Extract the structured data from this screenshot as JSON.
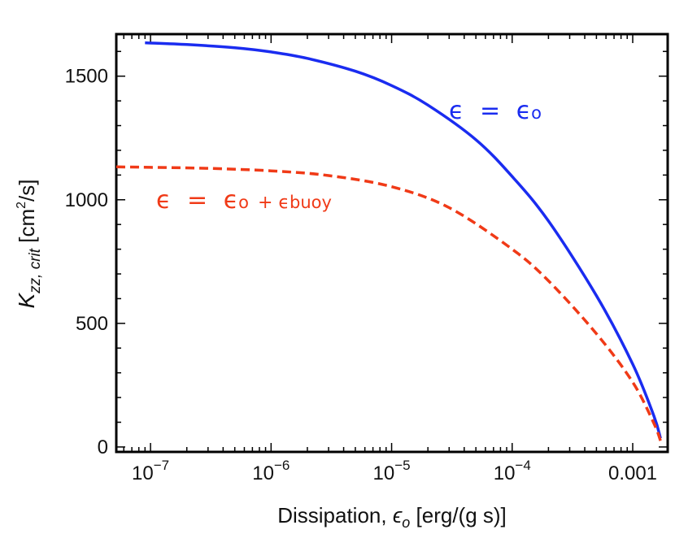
{
  "chart_data": {
    "type": "line",
    "xscale": "log",
    "xlim": [
      5.2e-08,
      0.00195
    ],
    "ylim": [
      -20,
      1670
    ],
    "x_ticks": [
      {
        "value": 1e-07,
        "base": "10",
        "exp": "−7"
      },
      {
        "value": 1e-06,
        "base": "10",
        "exp": "−6"
      },
      {
        "value": 1e-05,
        "base": "10",
        "exp": "−5"
      },
      {
        "value": 0.0001,
        "base": "10",
        "exp": "−4"
      },
      {
        "value": 0.001,
        "base": "0.001",
        "exp": ""
      }
    ],
    "y_ticks": [
      0,
      500,
      1000,
      1500
    ],
    "xlabel": {
      "main": "Dissipation, ",
      "symbol": "ϵ",
      "sub": "o",
      "units": "  [erg/(g s)]"
    },
    "ylabel": {
      "main": "K",
      "sub": "zz, crit",
      "units_pre": " [cm",
      "units_sup": "2",
      "units_post": "/s]"
    },
    "series": [
      {
        "name": "eps_o",
        "label": {
          "eps": "ϵ",
          "eq": " = ",
          "rhs": "ϵ",
          "rhs_sub": "o",
          "extra": "",
          "extra_sub": ""
        },
        "color": "#1a2cf0",
        "dash": "solid",
        "x": [
          9e-08,
          2e-07,
          5e-07,
          1e-06,
          2e-06,
          5e-06,
          1e-05,
          2e-05,
          5e-05,
          0.0001,
          0.0002,
          0.0005,
          0.001,
          0.0015,
          0.0017
        ],
        "y": [
          1635,
          1628,
          1615,
          1598,
          1572,
          1520,
          1462,
          1383,
          1243,
          1094,
          914,
          612,
          335,
          125,
          35
        ]
      },
      {
        "name": "eps_o_plus_buoy",
        "label": {
          "eps": "ϵ",
          "eq": " = ",
          "rhs": "ϵ",
          "rhs_sub": "o",
          "extra": " + ϵ",
          "extra_sub": "buoy"
        },
        "color": "#f03a17",
        "dash": "dashed",
        "x": [
          5.2e-08,
          1e-07,
          3e-07,
          1e-06,
          3e-06,
          1e-05,
          3e-05,
          0.0001,
          0.0002,
          0.0005,
          0.001,
          0.0015,
          0.0017
        ],
        "y": [
          1133,
          1131,
          1127,
          1117,
          1098,
          1053,
          968,
          800,
          672,
          458,
          262,
          95,
          25
        ]
      }
    ]
  }
}
